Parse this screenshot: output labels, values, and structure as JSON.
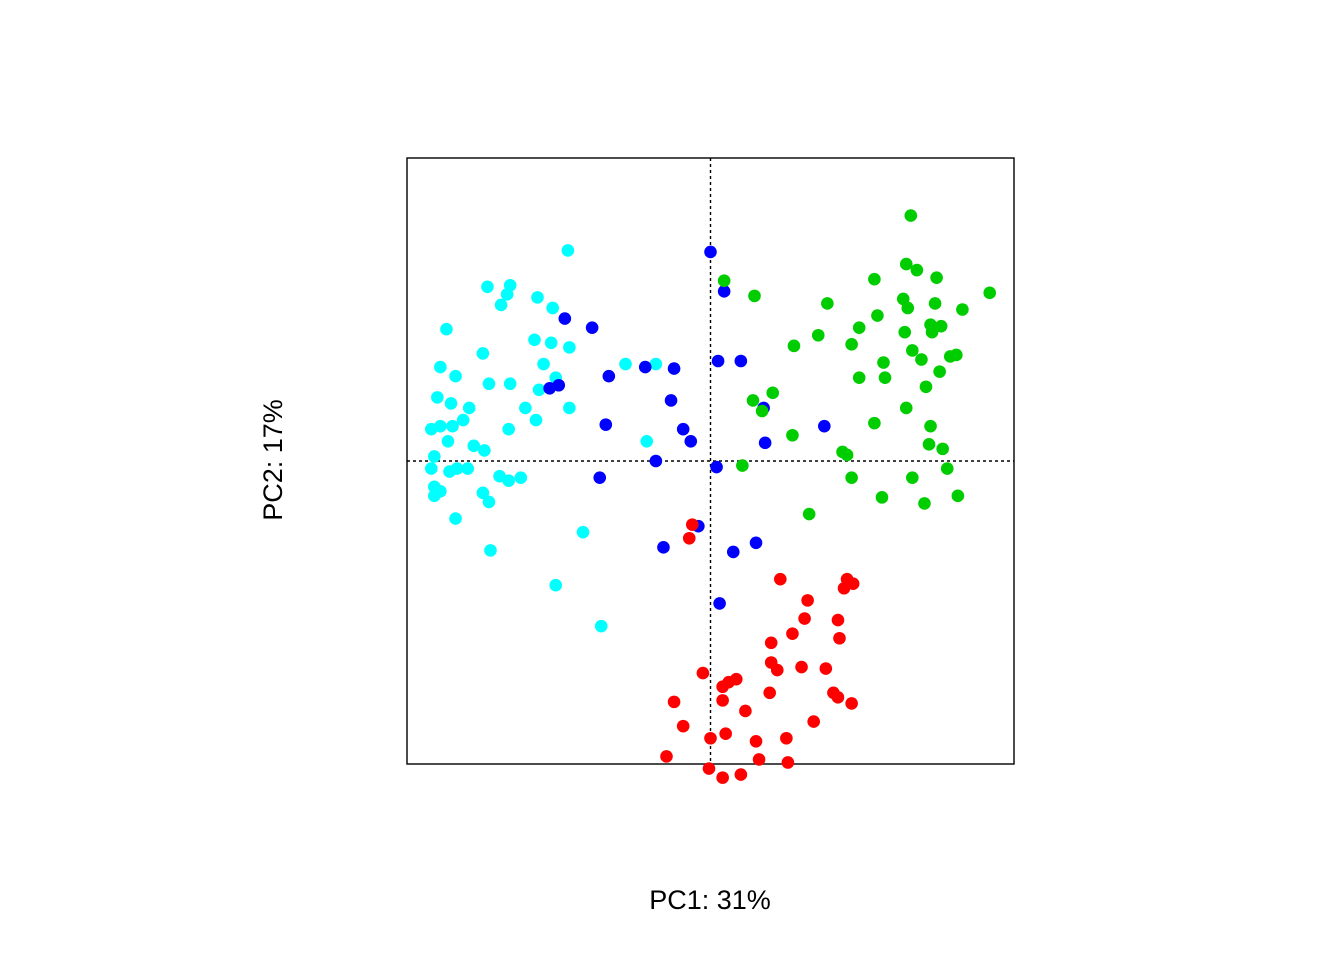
{
  "chart_data": {
    "type": "scatter",
    "title": "",
    "xlabel": "PC1: 31%",
    "ylabel": "PC2: 17%",
    "xlim": [
      -1.0,
      1.0
    ],
    "ylim": [
      -1.0,
      1.0
    ],
    "axis_ticks": false,
    "grid": false,
    "reference_lines": {
      "x": 0,
      "y": 0,
      "style": "dotted"
    },
    "legend": "none",
    "series": [
      {
        "color": "#00FFFF",
        "points": [
          [
            -0.47,
            0.695
          ],
          [
            -0.66,
            0.58
          ],
          [
            -0.67,
            0.55
          ],
          [
            -0.52,
            0.505
          ],
          [
            -0.87,
            0.435
          ],
          [
            -0.735,
            0.575
          ],
          [
            -0.69,
            0.515
          ],
          [
            -0.57,
            0.54
          ],
          [
            -0.58,
            0.4
          ],
          [
            -0.525,
            0.39
          ],
          [
            -0.55,
            0.32
          ],
          [
            -0.465,
            0.375
          ],
          [
            -0.89,
            0.31
          ],
          [
            -0.75,
            0.355
          ],
          [
            -0.73,
            0.255
          ],
          [
            -0.66,
            0.255
          ],
          [
            -0.28,
            0.32
          ],
          [
            -0.18,
            0.32
          ],
          [
            -0.51,
            0.275
          ],
          [
            -0.565,
            0.235
          ],
          [
            -0.465,
            0.175
          ],
          [
            -0.84,
            0.28
          ],
          [
            -0.9,
            0.21
          ],
          [
            -0.855,
            0.19
          ],
          [
            -0.795,
            0.175
          ],
          [
            -0.61,
            0.175
          ],
          [
            -0.575,
            0.135
          ],
          [
            -0.665,
            0.105
          ],
          [
            -0.85,
            0.115
          ],
          [
            -0.89,
            0.115
          ],
          [
            -0.815,
            0.135
          ],
          [
            -0.865,
            0.065
          ],
          [
            -0.78,
            0.05
          ],
          [
            -0.92,
            0.105
          ],
          [
            -0.91,
            0.015
          ],
          [
            -0.745,
            0.035
          ],
          [
            -0.92,
            -0.025
          ],
          [
            -0.835,
            -0.025
          ],
          [
            -0.8,
            -0.025
          ],
          [
            -0.86,
            -0.035
          ],
          [
            -0.695,
            -0.05
          ],
          [
            -0.665,
            -0.065
          ],
          [
            -0.625,
            -0.055
          ],
          [
            -0.91,
            -0.085
          ],
          [
            -0.89,
            -0.1
          ],
          [
            -0.91,
            -0.115
          ],
          [
            -0.75,
            -0.105
          ],
          [
            -0.73,
            -0.135
          ],
          [
            -0.84,
            -0.19
          ],
          [
            -0.21,
            0.065
          ],
          [
            -0.42,
            -0.235
          ],
          [
            -0.725,
            -0.295
          ],
          [
            -0.51,
            -0.41
          ],
          [
            -0.36,
            -0.545
          ]
        ]
      },
      {
        "color": "#0000FF",
        "points": [
          [
            0.0,
            0.69
          ],
          [
            0.045,
            0.56
          ],
          [
            -0.48,
            0.47
          ],
          [
            -0.39,
            0.44
          ],
          [
            0.025,
            0.33
          ],
          [
            0.1,
            0.33
          ],
          [
            -0.215,
            0.31
          ],
          [
            -0.12,
            0.305
          ],
          [
            -0.335,
            0.28
          ],
          [
            -0.53,
            0.24
          ],
          [
            -0.5,
            0.25
          ],
          [
            -0.13,
            0.2
          ],
          [
            0.175,
            0.175
          ],
          [
            -0.345,
            0.12
          ],
          [
            -0.09,
            0.105
          ],
          [
            -0.065,
            0.065
          ],
          [
            0.375,
            0.115
          ],
          [
            0.18,
            0.06
          ],
          [
            -0.18,
            0.0
          ],
          [
            0.02,
            -0.02
          ],
          [
            -0.365,
            -0.055
          ],
          [
            -0.04,
            -0.215
          ],
          [
            0.15,
            -0.27
          ],
          [
            -0.155,
            -0.285
          ],
          [
            0.075,
            -0.3
          ],
          [
            0.03,
            -0.47
          ]
        ]
      },
      {
        "color": "#00CD00",
        "points": [
          [
            0.66,
            0.81
          ],
          [
            0.645,
            0.65
          ],
          [
            0.68,
            0.63
          ],
          [
            0.745,
            0.605
          ],
          [
            0.54,
            0.6
          ],
          [
            0.045,
            0.595
          ],
          [
            0.92,
            0.555
          ],
          [
            0.145,
            0.545
          ],
          [
            0.635,
            0.535
          ],
          [
            0.65,
            0.505
          ],
          [
            0.74,
            0.52
          ],
          [
            0.385,
            0.52
          ],
          [
            0.83,
            0.5
          ],
          [
            0.55,
            0.48
          ],
          [
            0.725,
            0.45
          ],
          [
            0.76,
            0.445
          ],
          [
            0.49,
            0.44
          ],
          [
            0.73,
            0.425
          ],
          [
            0.64,
            0.425
          ],
          [
            0.355,
            0.415
          ],
          [
            0.275,
            0.38
          ],
          [
            0.465,
            0.385
          ],
          [
            0.665,
            0.365
          ],
          [
            0.79,
            0.345
          ],
          [
            0.81,
            0.35
          ],
          [
            0.695,
            0.335
          ],
          [
            0.57,
            0.325
          ],
          [
            0.575,
            0.275
          ],
          [
            0.755,
            0.295
          ],
          [
            0.49,
            0.275
          ],
          [
            0.71,
            0.245
          ],
          [
            0.205,
            0.225
          ],
          [
            0.14,
            0.2
          ],
          [
            0.17,
            0.165
          ],
          [
            0.645,
            0.175
          ],
          [
            0.54,
            0.125
          ],
          [
            0.725,
            0.115
          ],
          [
            0.27,
            0.085
          ],
          [
            0.72,
            0.055
          ],
          [
            0.765,
            0.04
          ],
          [
            0.435,
            0.03
          ],
          [
            0.45,
            0.02
          ],
          [
            0.105,
            -0.015
          ],
          [
            0.78,
            -0.025
          ],
          [
            0.465,
            -0.055
          ],
          [
            0.665,
            -0.055
          ],
          [
            0.815,
            -0.115
          ],
          [
            0.565,
            -0.12
          ],
          [
            0.705,
            -0.14
          ],
          [
            0.325,
            -0.175
          ]
        ]
      },
      {
        "color": "#FF0000",
        "points": [
          [
            -0.06,
            -0.21
          ],
          [
            -0.07,
            -0.255
          ],
          [
            0.45,
            -0.39
          ],
          [
            0.47,
            -0.405
          ],
          [
            0.23,
            -0.39
          ],
          [
            0.44,
            -0.42
          ],
          [
            0.32,
            -0.46
          ],
          [
            0.31,
            -0.52
          ],
          [
            0.42,
            -0.525
          ],
          [
            0.27,
            -0.57
          ],
          [
            0.425,
            -0.585
          ],
          [
            0.2,
            -0.6
          ],
          [
            0.2,
            -0.665
          ],
          [
            0.3,
            -0.68
          ],
          [
            0.38,
            -0.685
          ],
          [
            0.22,
            -0.69
          ],
          [
            -0.025,
            -0.7
          ],
          [
            0.085,
            -0.72
          ],
          [
            0.06,
            -0.73
          ],
          [
            0.04,
            -0.745
          ],
          [
            0.195,
            -0.765
          ],
          [
            0.405,
            -0.765
          ],
          [
            0.42,
            -0.78
          ],
          [
            0.465,
            -0.8
          ],
          [
            0.04,
            -0.79
          ],
          [
            -0.12,
            -0.795
          ],
          [
            0.115,
            -0.825
          ],
          [
            0.34,
            -0.86
          ],
          [
            -0.09,
            -0.875
          ],
          [
            0.05,
            -0.9
          ],
          [
            0.0,
            -0.915
          ],
          [
            0.25,
            -0.915
          ],
          [
            0.15,
            -0.925
          ],
          [
            -0.145,
            -0.975
          ],
          [
            0.16,
            -0.985
          ],
          [
            0.255,
            -0.995
          ],
          [
            -0.005,
            -1.015
          ],
          [
            0.04,
            -1.045
          ],
          [
            0.1,
            -1.035
          ]
        ]
      }
    ]
  }
}
